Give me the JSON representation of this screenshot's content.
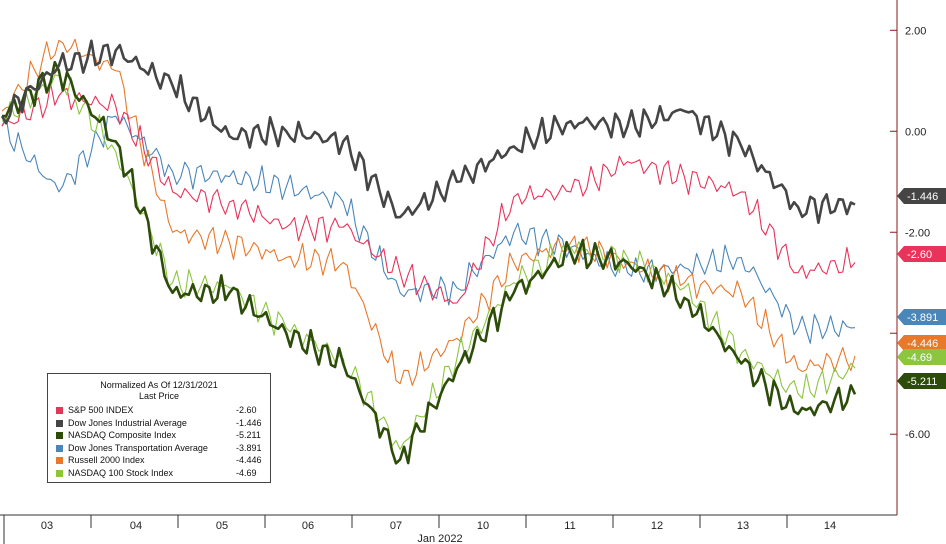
{
  "chart_data": {
    "type": "line",
    "title": "",
    "xlabel": "Jan 2022",
    "ylabel": "",
    "ylim": [
      -7.6,
      2.6
    ],
    "y_ticks": [
      2,
      0,
      -2,
      -4,
      -6
    ],
    "y_tick_labels": [
      "2.00",
      "0.00",
      "-2.00",
      "",
      "-6.00"
    ],
    "x_ticks": [
      "03",
      "04",
      "05",
      "06",
      "07",
      "10",
      "11",
      "12",
      "13",
      "14"
    ],
    "grid": false,
    "legend_position": "bottom-left",
    "legend_header": [
      "Normalized As Of 12/31/2021",
      "Last Price"
    ],
    "series": [
      {
        "name": "S&P 500 INDEX",
        "color": "#e8335a",
        "last": "-2.60",
        "tag": "-2.60",
        "values": [
          0.1,
          0.7,
          0.5,
          -1.2,
          -1.4,
          -1.9,
          -1.9,
          -2.8,
          -3.4,
          -1.3,
          -1.2,
          -0.6,
          -0.9,
          -1.2,
          -2.8,
          -2.6
        ]
      },
      {
        "name": "Dow Jones Industrial Average",
        "color": "#454545",
        "last": "-1.446",
        "tag": "-1.446",
        "values": [
          0.3,
          1.3,
          1.6,
          0.9,
          -0.1,
          0.0,
          -0.2,
          -1.7,
          -1.0,
          -0.3,
          0.2,
          0.1,
          0.4,
          -0.3,
          -1.5,
          -1.45
        ]
      },
      {
        "name": "NASDAQ Composite Index",
        "color": "#2d4c0a",
        "last": "-5.211",
        "tag": "-5.211",
        "values": [
          0.3,
          1.2,
          -0.2,
          -3.2,
          -3.2,
          -4.0,
          -4.6,
          -6.5,
          -4.7,
          -3.2,
          -2.4,
          -2.6,
          -3.3,
          -4.6,
          -5.6,
          -5.21
        ]
      },
      {
        "name": "Dow Jones Transportation Average",
        "color": "#4a86b8",
        "last": "-3.891",
        "tag": "-3.891",
        "values": [
          0.1,
          -1.2,
          0.3,
          -0.8,
          -0.9,
          -1.1,
          -1.4,
          -3.2,
          -3.1,
          -2.0,
          -2.3,
          -2.8,
          -2.7,
          -2.5,
          -3.9,
          -3.89
        ]
      },
      {
        "name": "Russell 2000 Index",
        "color": "#e8782a",
        "last": "-4.446",
        "tag": "-4.446",
        "values": [
          0.4,
          1.8,
          1.2,
          -2.0,
          -2.2,
          -2.5,
          -2.6,
          -5.0,
          -4.1,
          -2.6,
          -2.2,
          -2.6,
          -3.0,
          -3.2,
          -4.7,
          -4.45
        ]
      },
      {
        "name": "NASDAQ 100 Stock Index",
        "color": "#8cc63f",
        "last": "-4.69",
        "tag": "-4.69",
        "values": [
          0.2,
          1.1,
          -0.4,
          -3.0,
          -3.1,
          -3.9,
          -4.5,
          -6.3,
          -4.5,
          -3.0,
          -2.3,
          -2.5,
          -3.1,
          -4.4,
          -5.2,
          -4.69
        ]
      }
    ]
  }
}
